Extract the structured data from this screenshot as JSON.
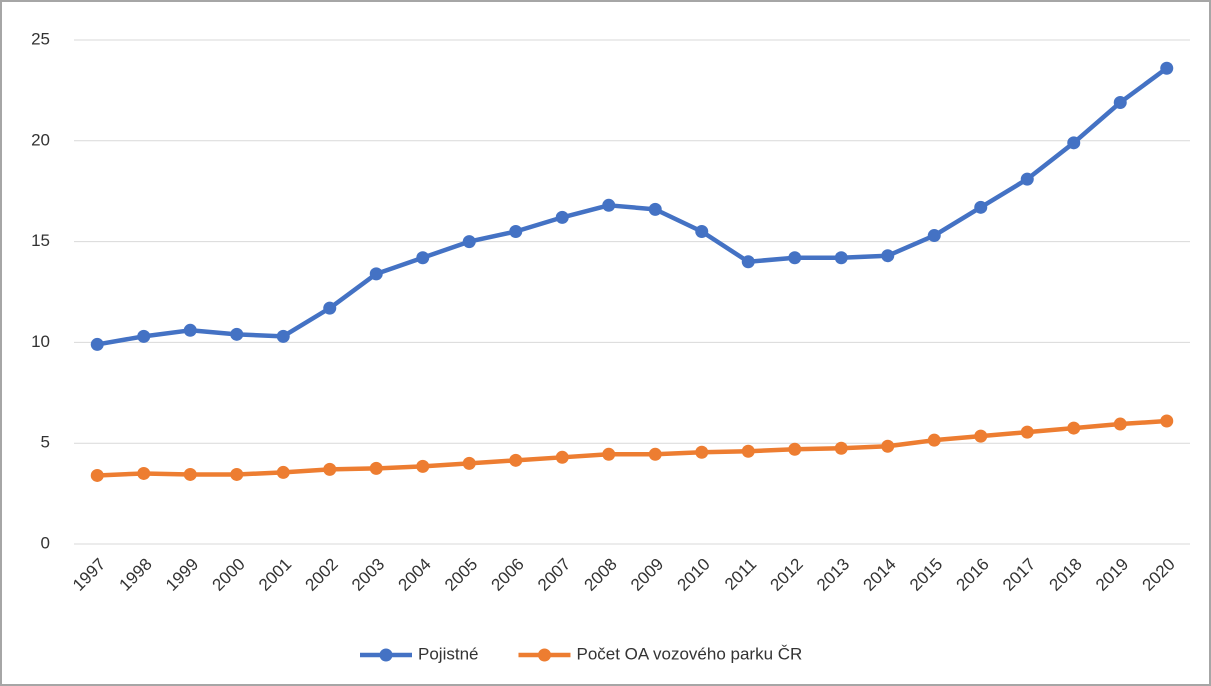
{
  "chart_data": {
    "type": "line",
    "categories": [
      "1997",
      "1998",
      "1999",
      "2000",
      "2001",
      "2002",
      "2003",
      "2004",
      "2005",
      "2006",
      "2007",
      "2008",
      "2009",
      "2010",
      "2011",
      "2012",
      "2013",
      "2014",
      "2015",
      "2016",
      "2017",
      "2018",
      "2019",
      "2020"
    ],
    "series": [
      {
        "name": "Pojistné",
        "color": "#4472c4",
        "values": [
          9.9,
          10.3,
          10.6,
          10.4,
          10.3,
          11.7,
          13.4,
          14.2,
          15.0,
          15.5,
          16.2,
          16.8,
          16.6,
          15.5,
          14.0,
          14.2,
          14.2,
          14.3,
          15.3,
          16.7,
          18.1,
          19.9,
          21.9,
          23.6
        ]
      },
      {
        "name": "Počet OA vozového parku ČR",
        "color": "#ed7d31",
        "values": [
          3.4,
          3.5,
          3.45,
          3.45,
          3.55,
          3.7,
          3.75,
          3.85,
          4.0,
          4.15,
          4.3,
          4.45,
          4.45,
          4.55,
          4.6,
          4.7,
          4.75,
          4.85,
          5.15,
          5.35,
          5.55,
          5.75,
          5.95,
          6.1
        ]
      }
    ],
    "ylim": [
      0,
      25
    ],
    "yticks": [
      0,
      5,
      10,
      15,
      20,
      25
    ],
    "grid": true,
    "legend": "bottom"
  }
}
